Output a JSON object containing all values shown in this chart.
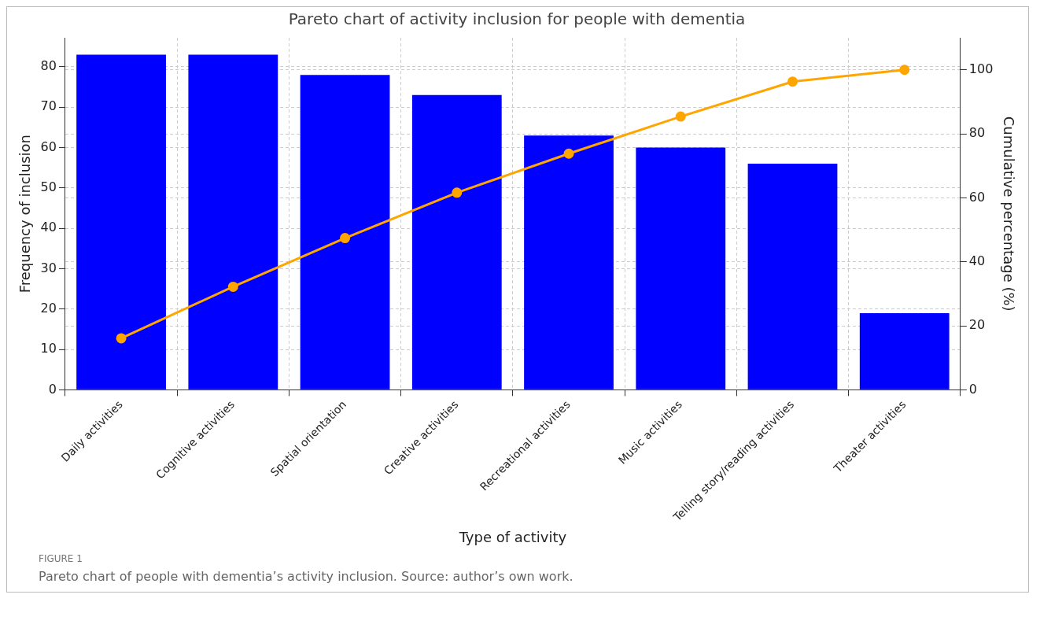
{
  "chart_data": {
    "type": "bar",
    "title": "Pareto chart of activity inclusion for people with dementia",
    "xlabel": "Type of activity",
    "ylabel": "Frequency of inclusion",
    "y2label": "Cumulative percentage (%)",
    "categories": [
      "Daily activities",
      "Cognitive activities",
      "Spatial orientation",
      "Creative activities",
      "Recreational activities",
      "Music activities",
      "Telling story/reading activities",
      "Theater activities"
    ],
    "series": [
      {
        "color": "#0000ff",
        "values": [
          83,
          83,
          78,
          73,
          63,
          60,
          56,
          19
        ]
      },
      {
        "type": "line",
        "axis": "y2",
        "color": "#ffa500",
        "marker": "circle",
        "values": [
          16.1,
          32.2,
          47.4,
          61.6,
          73.8,
          85.4,
          96.3,
          100
        ]
      }
    ],
    "ylim": [
      0,
      87.2
    ],
    "yticks": [
      0,
      10,
      20,
      30,
      40,
      50,
      60,
      70,
      80
    ],
    "y2lim": [
      0,
      110
    ],
    "y2ticks": [
      0,
      20,
      40,
      60,
      80,
      100
    ],
    "grid": true,
    "legend": false,
    "annotations": [
      "FIGURE 1",
      "Pareto chart of people with dementia’s activity inclusion. Source: author’s own work."
    ]
  }
}
